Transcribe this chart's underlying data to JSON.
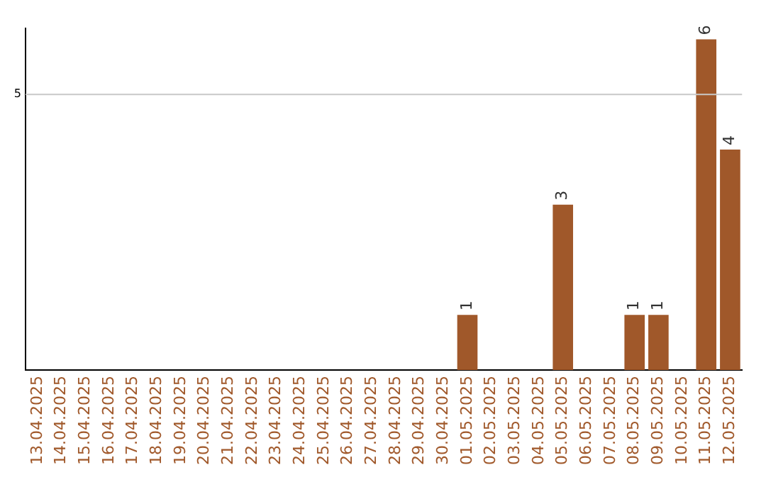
{
  "chart_data": {
    "type": "bar",
    "categories": [
      "13.04.2025",
      "14.04.2025",
      "15.04.2025",
      "16.04.2025",
      "17.04.2025",
      "18.04.2025",
      "19.04.2025",
      "20.04.2025",
      "21.04.2025",
      "22.04.2025",
      "23.04.2025",
      "24.04.2025",
      "25.04.2025",
      "26.04.2025",
      "27.04.2025",
      "28.04.2025",
      "29.04.2025",
      "30.04.2025",
      "01.05.2025",
      "02.05.2025",
      "03.05.2025",
      "04.05.2025",
      "05.05.2025",
      "06.05.2025",
      "07.05.2025",
      "08.05.2025",
      "09.05.2025",
      "10.05.2025",
      "11.05.2025",
      "12.05.2025"
    ],
    "values": [
      null,
      null,
      null,
      null,
      null,
      null,
      null,
      null,
      null,
      null,
      null,
      null,
      null,
      null,
      null,
      null,
      null,
      null,
      1,
      null,
      null,
      null,
      3,
      null,
      null,
      1,
      1,
      null,
      6,
      4
    ],
    "data_labels": true,
    "color": "#a0582a",
    "ylim": [
      0,
      6.2
    ],
    "ref_lines": [
      {
        "axis": "y",
        "value": 5,
        "label": "5",
        "color": "#c8c8c8"
      }
    ],
    "legend": false
  }
}
